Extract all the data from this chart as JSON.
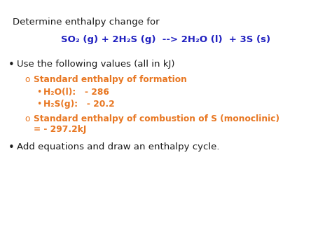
{
  "bg_color": "#ffffff",
  "blue_color": "#2020C0",
  "orange_color": "#E87722",
  "black_color": "#1a1a1a",
  "fs_title": 9.5,
  "fs_eq": 9.5,
  "fs_body": 9.5,
  "fs_sub": 8.8,
  "fs_subsub": 8.8,
  "line1": "Determine enthalpy change for",
  "line2_eq": "SO₂ (g) + 2H₂S (g)  --> 2H₂O (l)  + 3S (s)",
  "bullet1": "Use the following values (all in kJ)",
  "sub1": "Standard enthalpy of formation",
  "subsub1": "H₂O(l):   - 286",
  "subsub2": "H₂S(g):   - 20.2",
  "sub2a": "Standard enthalpy of combustion of S (monoclinic)",
  "sub2b": "= - 297.2kJ",
  "bullet2": "Add equations and draw an enthalpy cycle."
}
